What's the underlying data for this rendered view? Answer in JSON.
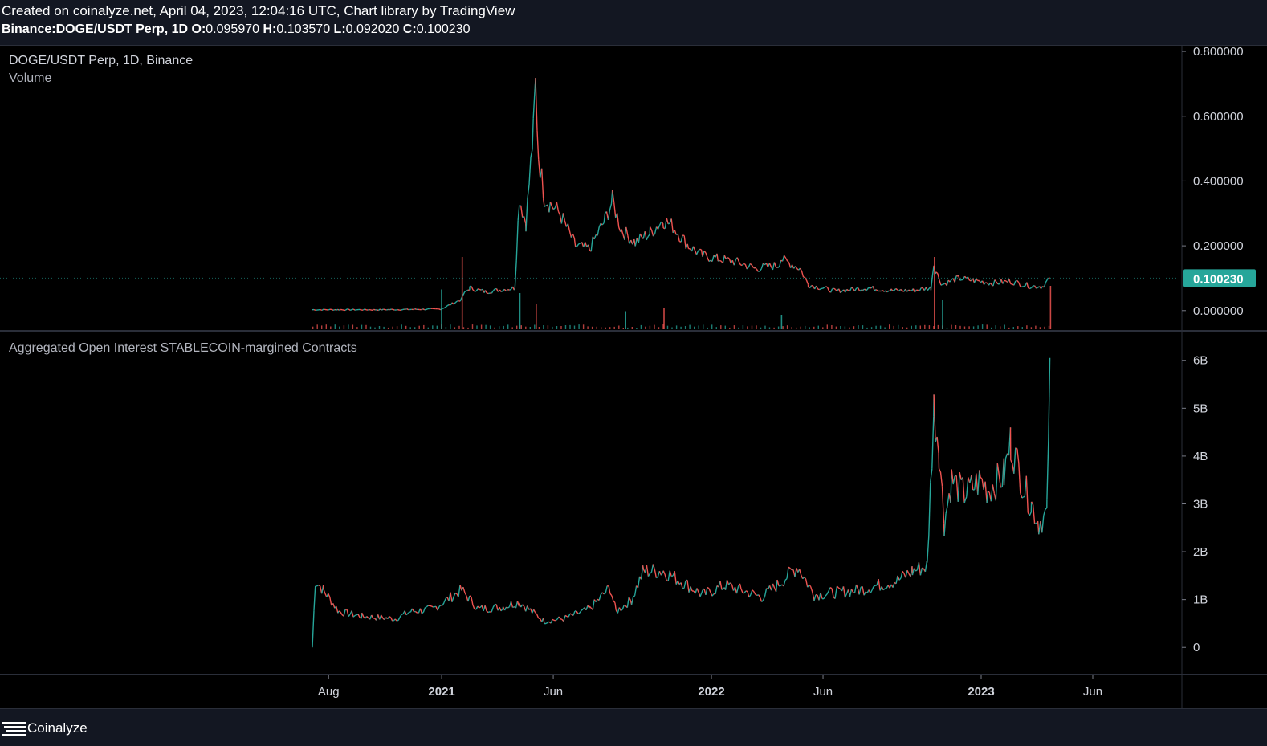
{
  "header": {
    "created_line": "Created on coinalyze.net, April 04, 2023, 12:04:16 UTC, Chart library by TradingView",
    "symbol": "Binance:DOGE/USDT Perp, 1D",
    "o_label": "O:",
    "o_value": "0.095970",
    "h_label": "H:",
    "h_value": "0.103570",
    "l_label": "L:",
    "l_value": "0.092020",
    "c_label": "C:",
    "c_value": "0.100230"
  },
  "legends": {
    "main": "DOGE/USDT Perp, 1D, Binance",
    "volume": "Volume",
    "oi": "Aggregated Open Interest STABLECOIN-margined Contracts"
  },
  "footer": {
    "brand": "Coinalyze",
    "logo_icon": "hamburger-lines-icon"
  },
  "colors": {
    "background": "#000000",
    "up": "#26a69a",
    "down": "#ef5350",
    "grid": "#1b1d24",
    "price_badge": "#26a69a",
    "axis_text": "#d1d4dc"
  },
  "chart_data": [
    {
      "type": "line",
      "title": "DOGE/USDT Perp, 1D, Binance",
      "ylabel": "",
      "ylim": [
        -0.06,
        0.82
      ],
      "yticks": [
        0.8,
        0.6,
        0.4,
        0.2,
        0.0
      ],
      "ytick_labels": [
        "0.800000",
        "0.600000",
        "0.400000",
        "0.200000",
        "0.000000"
      ],
      "last_price_label": "0.100230",
      "last_price": 0.10023,
      "grid": false,
      "series": [
        {
          "x": [
            "2020-07-10",
            "2020-08-15",
            "2020-10-01",
            "2020-11-15",
            "2020-12-31",
            "2021-01-28",
            "2021-01-30",
            "2021-02-08",
            "2021-03-01",
            "2021-04-10",
            "2021-04-16",
            "2021-04-25",
            "2021-05-05",
            "2021-05-08",
            "2021-05-12",
            "2021-05-20",
            "2021-05-28",
            "2021-06-10",
            "2021-07-01",
            "2021-07-20",
            "2021-08-10",
            "2021-08-20",
            "2021-09-01",
            "2021-09-20",
            "2021-10-10",
            "2021-10-28",
            "2021-11-10",
            "2021-12-01",
            "2021-12-20",
            "2022-01-10",
            "2022-02-05",
            "2022-03-01",
            "2022-04-01",
            "2022-04-05",
            "2022-05-01",
            "2022-05-12",
            "2022-06-18",
            "2022-08-01",
            "2022-09-01",
            "2022-10-01",
            "2022-10-25",
            "2022-10-29",
            "2022-11-01",
            "2022-11-09",
            "2022-12-01",
            "2023-01-15",
            "2023-02-10",
            "2023-03-10",
            "2023-03-25",
            "2023-04-04"
          ],
          "values": [
            0.0028,
            0.0029,
            0.0027,
            0.0035,
            0.0047,
            0.035,
            0.048,
            0.07,
            0.058,
            0.07,
            0.35,
            0.27,
            0.55,
            0.7,
            0.48,
            0.35,
            0.33,
            0.3,
            0.2,
            0.19,
            0.28,
            0.34,
            0.25,
            0.21,
            0.24,
            0.28,
            0.26,
            0.2,
            0.17,
            0.16,
            0.15,
            0.13,
            0.14,
            0.16,
            0.13,
            0.08,
            0.06,
            0.07,
            0.062,
            0.062,
            0.07,
            0.145,
            0.12,
            0.08,
            0.1,
            0.085,
            0.09,
            0.075,
            0.075,
            0.1002
          ]
        }
      ]
    },
    {
      "type": "bar",
      "title": "Volume",
      "series": [
        {
          "x": [
            "2020-12-31",
            "2021-01-28",
            "2021-04-16",
            "2021-05-08",
            "2021-09-06",
            "2021-10-28",
            "2022-04-05",
            "2022-10-29",
            "2022-11-09",
            "2023-04-04"
          ],
          "values": [
            0.55,
            1.0,
            0.5,
            0.35,
            0.25,
            0.3,
            0.2,
            1.0,
            0.4,
            0.6
          ]
        }
      ]
    },
    {
      "type": "line",
      "title": "Aggregated Open Interest STABLECOIN-margined Contracts",
      "ylim": [
        -0.55,
        6.6
      ],
      "yticks": [
        6,
        5,
        4,
        3,
        2,
        1,
        0
      ],
      "ytick_labels": [
        "6B",
        "5B",
        "4B",
        "3B",
        "2B",
        "1B",
        "0"
      ],
      "series": [
        {
          "x": [
            "2020-07-10",
            "2020-07-14",
            "2020-07-25",
            "2020-08-15",
            "2020-09-15",
            "2020-10-30",
            "2020-11-20",
            "2020-12-20",
            "2021-01-28",
            "2021-02-20",
            "2021-03-25",
            "2021-04-16",
            "2021-05-20",
            "2021-06-15",
            "2021-07-20",
            "2021-08-17",
            "2021-08-25",
            "2021-09-15",
            "2021-10-01",
            "2021-10-28",
            "2021-11-25",
            "2021-12-20",
            "2022-01-20",
            "2022-02-10",
            "2022-03-10",
            "2022-03-31",
            "2022-04-28",
            "2022-05-20",
            "2022-06-20",
            "2022-07-20",
            "2022-08-15",
            "2022-09-10",
            "2022-09-30",
            "2022-10-20",
            "2022-10-29",
            "2022-11-05",
            "2022-11-12",
            "2022-11-22",
            "2022-12-10",
            "2022-12-31",
            "2023-01-10",
            "2023-02-01",
            "2023-02-10",
            "2023-03-01",
            "2023-03-10",
            "2023-03-20",
            "2023-03-31",
            "2023-04-04"
          ],
          "values": [
            0.0,
            1.4,
            1.2,
            0.75,
            0.65,
            0.6,
            0.75,
            0.8,
            1.2,
            0.8,
            0.85,
            0.95,
            0.55,
            0.6,
            0.8,
            1.25,
            0.75,
            1.0,
            1.6,
            1.6,
            1.35,
            1.1,
            1.3,
            1.2,
            1.05,
            1.3,
            1.7,
            1.1,
            1.15,
            1.2,
            1.3,
            1.4,
            1.6,
            1.7,
            5.0,
            4.2,
            2.6,
            3.5,
            3.2,
            3.5,
            3.3,
            3.6,
            4.3,
            3.3,
            3.0,
            2.6,
            2.8,
            6.05
          ]
        }
      ]
    }
  ],
  "x_axis": {
    "ticks": [
      {
        "label": "Aug",
        "date": "2020-08-01"
      },
      {
        "label": "2021",
        "date": "2021-01-01"
      },
      {
        "label": "Jun",
        "date": "2021-06-01"
      },
      {
        "label": "2022",
        "date": "2022-01-01"
      },
      {
        "label": "Jun",
        "date": "2022-06-01"
      },
      {
        "label": "2023",
        "date": "2023-01-01"
      },
      {
        "label": "Jun",
        "date": "2023-06-01"
      }
    ]
  }
}
